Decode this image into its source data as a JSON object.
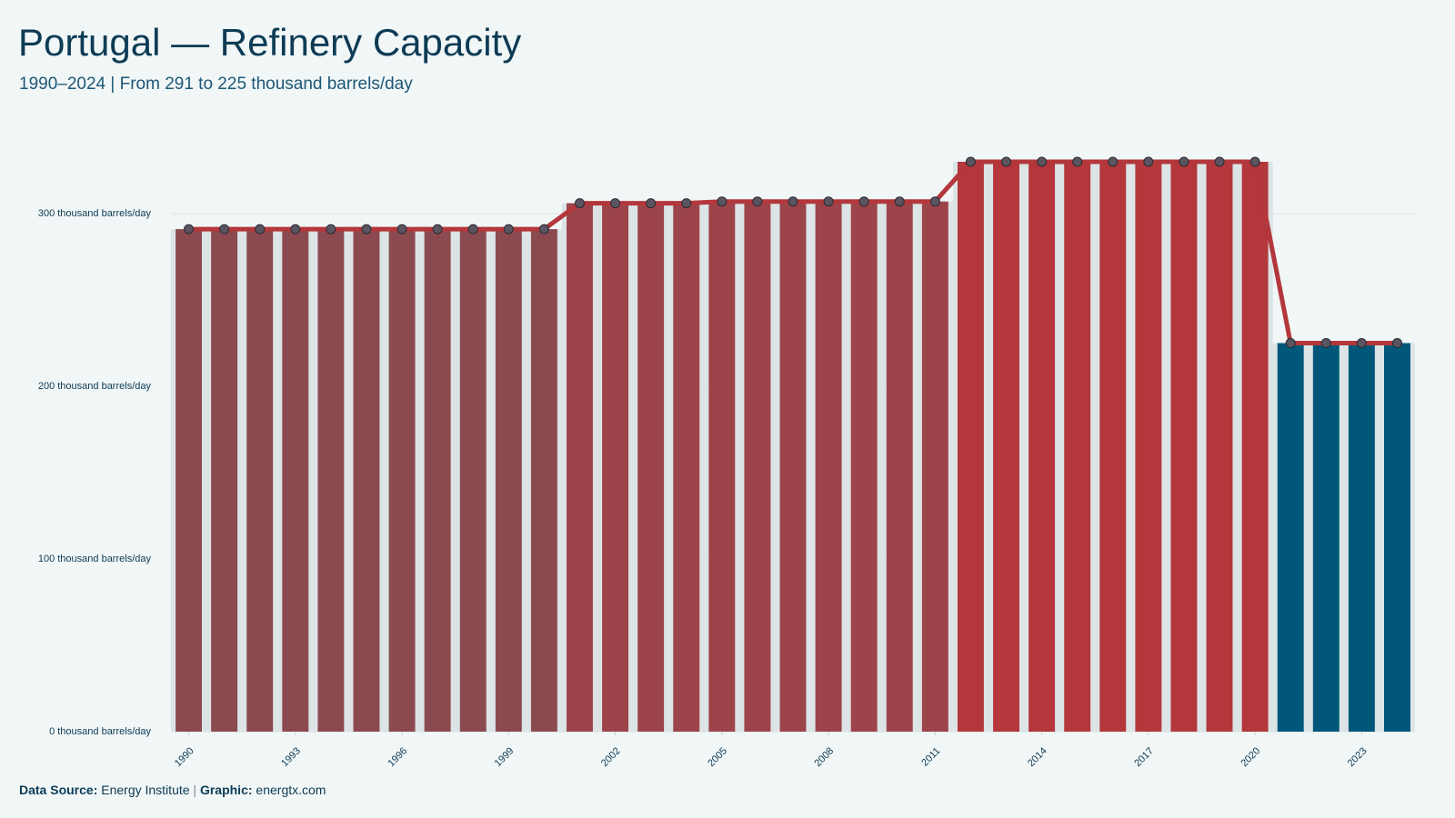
{
  "chart_data": {
    "type": "bar",
    "title": "Portugal — Refinery Capacity",
    "subtitle": "1990–2024 | From 291 to 225 thousand barrels/day",
    "x": [
      1990,
      1991,
      1992,
      1993,
      1994,
      1995,
      1996,
      1997,
      1998,
      1999,
      2000,
      2001,
      2002,
      2003,
      2004,
      2005,
      2006,
      2007,
      2008,
      2009,
      2010,
      2011,
      2012,
      2013,
      2014,
      2015,
      2016,
      2017,
      2018,
      2019,
      2020,
      2021,
      2022,
      2023,
      2024
    ],
    "values": [
      291,
      291,
      291,
      291,
      291,
      291,
      291,
      291,
      291,
      291,
      291,
      306,
      306,
      306,
      306,
      307,
      307,
      307,
      307,
      307,
      307,
      307,
      330,
      330,
      330,
      330,
      330,
      330,
      330,
      330,
      330,
      225,
      225,
      225,
      225
    ],
    "colors": [
      "#8b4a50",
      "#8b4a50",
      "#8b4a50",
      "#8b4a50",
      "#8b4a50",
      "#8b4a50",
      "#8b4a50",
      "#8b4a50",
      "#8b4a50",
      "#8b4a50",
      "#8b4a50",
      "#9c444a",
      "#9c444a",
      "#9c444a",
      "#9c444a",
      "#9c444a",
      "#9c444a",
      "#9c444a",
      "#9c444a",
      "#9c444a",
      "#9c444a",
      "#9c444a",
      "#b3373b",
      "#b3373b",
      "#b3373b",
      "#b3373b",
      "#b3373b",
      "#b3373b",
      "#b3373b",
      "#b3373b",
      "#b3373b",
      "#00577a",
      "#00577a",
      "#00577a",
      "#00577a"
    ],
    "line_color": "#b3373b",
    "area_color": "#dce4e6",
    "xlim": [
      1989.5,
      2024.5
    ],
    "xticks": [
      1990,
      1993,
      1996,
      1999,
      2002,
      2005,
      2008,
      2011,
      2014,
      2017,
      2020,
      2023
    ],
    "ylim": [
      0,
      340
    ],
    "yticks": [
      {
        "value": 0,
        "label": "0 thousand barrels/day"
      },
      {
        "value": 100,
        "label": "100 thousand barrels/day"
      },
      {
        "value": 200,
        "label": "200 thousand barrels/day"
      },
      {
        "value": 300,
        "label": "300 thousand barrels/day"
      }
    ],
    "grid": true,
    "source_label": "Data Source:",
    "source": "Energy Institute",
    "separator": "|",
    "graphic_label": "Graphic:",
    "graphic": "energtx.com"
  }
}
